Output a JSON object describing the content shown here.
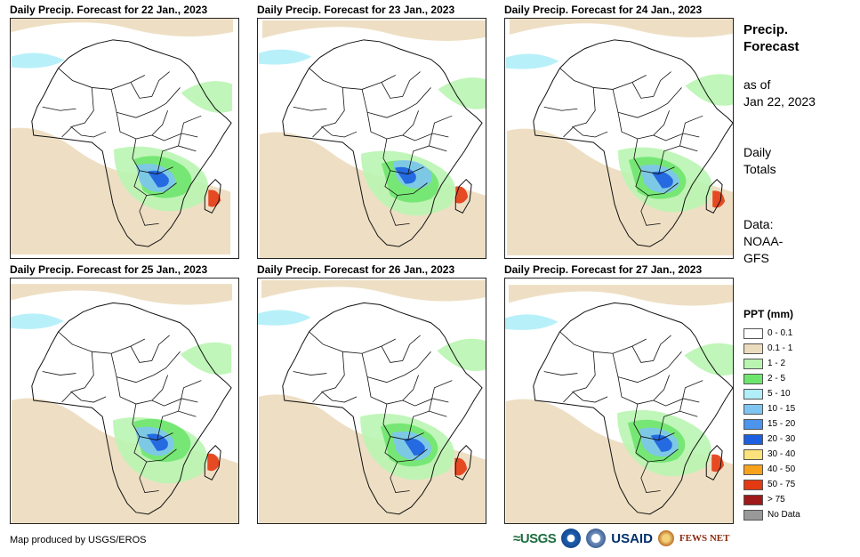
{
  "panels": [
    {
      "title": "Daily Precip. Forecast for 22 Jan., 2023"
    },
    {
      "title": "Daily Precip. Forecast for 23 Jan., 2023"
    },
    {
      "title": "Daily Precip. Forecast for 24 Jan., 2023"
    },
    {
      "title": "Daily Precip. Forecast for 25 Jan., 2023"
    },
    {
      "title": "Daily Precip. Forecast for 26 Jan., 2023"
    },
    {
      "title": "Daily Precip. Forecast for 27 Jan., 2023"
    }
  ],
  "side": {
    "title_line1": "Precip.",
    "title_line2": "Forecast",
    "asof_line1": "as of",
    "asof_line2": "Jan 22, 2023",
    "totals_line1": "Daily",
    "totals_line2": "Totals",
    "data_line1": "Data:",
    "data_line2": "NOAA-",
    "data_line3": "GFS"
  },
  "legend": {
    "title": "PPT (mm)",
    "items": [
      {
        "label": "0 - 0.1",
        "color": "#ffffff"
      },
      {
        "label": "0.1 - 1",
        "color": "#ecdcbe"
      },
      {
        "label": "1 - 2",
        "color": "#b9f5b1"
      },
      {
        "label": "2 - 5",
        "color": "#6ee66e"
      },
      {
        "label": "5 - 10",
        "color": "#b0eef8"
      },
      {
        "label": "10 - 15",
        "color": "#7ec5f2"
      },
      {
        "label": "15 - 20",
        "color": "#4c94ec"
      },
      {
        "label": "20 - 30",
        "color": "#1c5fe0"
      },
      {
        "label": "30 - 40",
        "color": "#fbe27a"
      },
      {
        "label": "40 - 50",
        "color": "#f8a21c"
      },
      {
        "label": "50 - 75",
        "color": "#e33a12"
      },
      {
        "label": "> 75",
        "color": "#9e1a1a"
      },
      {
        "label": "No Data",
        "color": "#999999"
      }
    ]
  },
  "footer": {
    "credit": "Map produced by USGS/EROS",
    "logo_usgs": "≈USGS",
    "logo_usaid": "USAID",
    "logo_fews": "FEWS NET"
  }
}
